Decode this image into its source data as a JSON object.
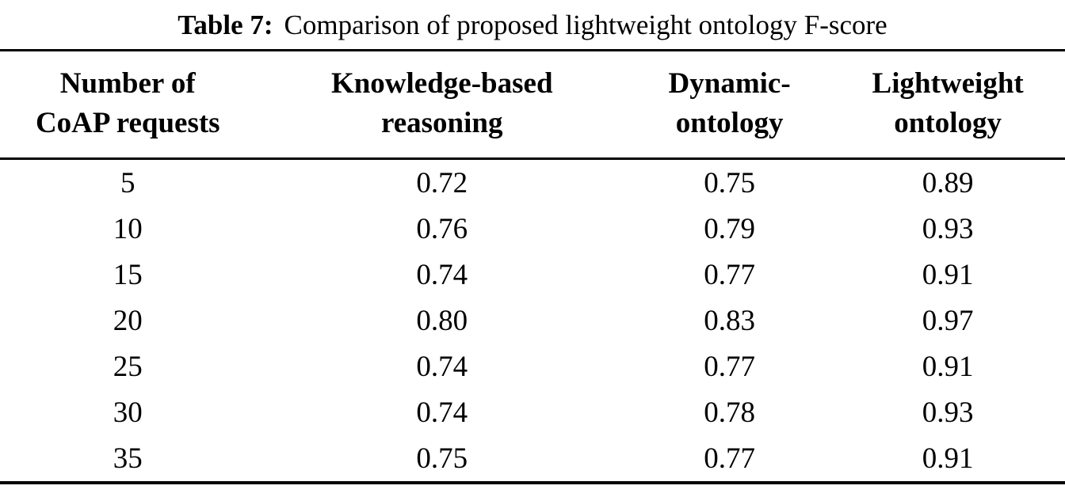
{
  "caption": {
    "label": "Table 7:",
    "text": "Comparison of proposed lightweight ontology F-score"
  },
  "table": {
    "headers": [
      {
        "line1": "Number of",
        "line2": "CoAP requests"
      },
      {
        "line1": "Knowledge-based",
        "line2": "reasoning"
      },
      {
        "line1": "Dynamic-",
        "line2": "ontology"
      },
      {
        "line1": "Lightweight",
        "line2": "ontology"
      }
    ],
    "rows": [
      {
        "requests": "5",
        "knowledge": "0.72",
        "dynamic": "0.75",
        "lightweight": "0.89"
      },
      {
        "requests": "10",
        "knowledge": "0.76",
        "dynamic": "0.79",
        "lightweight": "0.93"
      },
      {
        "requests": "15",
        "knowledge": "0.74",
        "dynamic": "0.77",
        "lightweight": "0.91"
      },
      {
        "requests": "20",
        "knowledge": "0.80",
        "dynamic": "0.83",
        "lightweight": "0.97"
      },
      {
        "requests": "25",
        "knowledge": "0.74",
        "dynamic": "0.77",
        "lightweight": "0.91"
      },
      {
        "requests": "30",
        "knowledge": "0.74",
        "dynamic": "0.78",
        "lightweight": "0.93"
      },
      {
        "requests": "35",
        "knowledge": "0.75",
        "dynamic": "0.77",
        "lightweight": "0.91"
      }
    ]
  },
  "colors": {
    "text": "#000000",
    "background": "#ffffff",
    "rule": "#000000"
  },
  "chart_data": {
    "type": "table",
    "title": "Table 7: Comparison of proposed lightweight ontology F-score",
    "categories": [
      5,
      10,
      15,
      20,
      25,
      30,
      35
    ],
    "xlabel": "Number of CoAP requests",
    "ylabel": "F-score",
    "series": [
      {
        "name": "Knowledge-based reasoning",
        "values": [
          0.72,
          0.76,
          0.74,
          0.8,
          0.74,
          0.74,
          0.75
        ]
      },
      {
        "name": "Dynamic-ontology",
        "values": [
          0.75,
          0.79,
          0.77,
          0.83,
          0.77,
          0.78,
          0.77
        ]
      },
      {
        "name": "Lightweight ontology",
        "values": [
          0.89,
          0.93,
          0.91,
          0.97,
          0.91,
          0.93,
          0.91
        ]
      }
    ]
  }
}
